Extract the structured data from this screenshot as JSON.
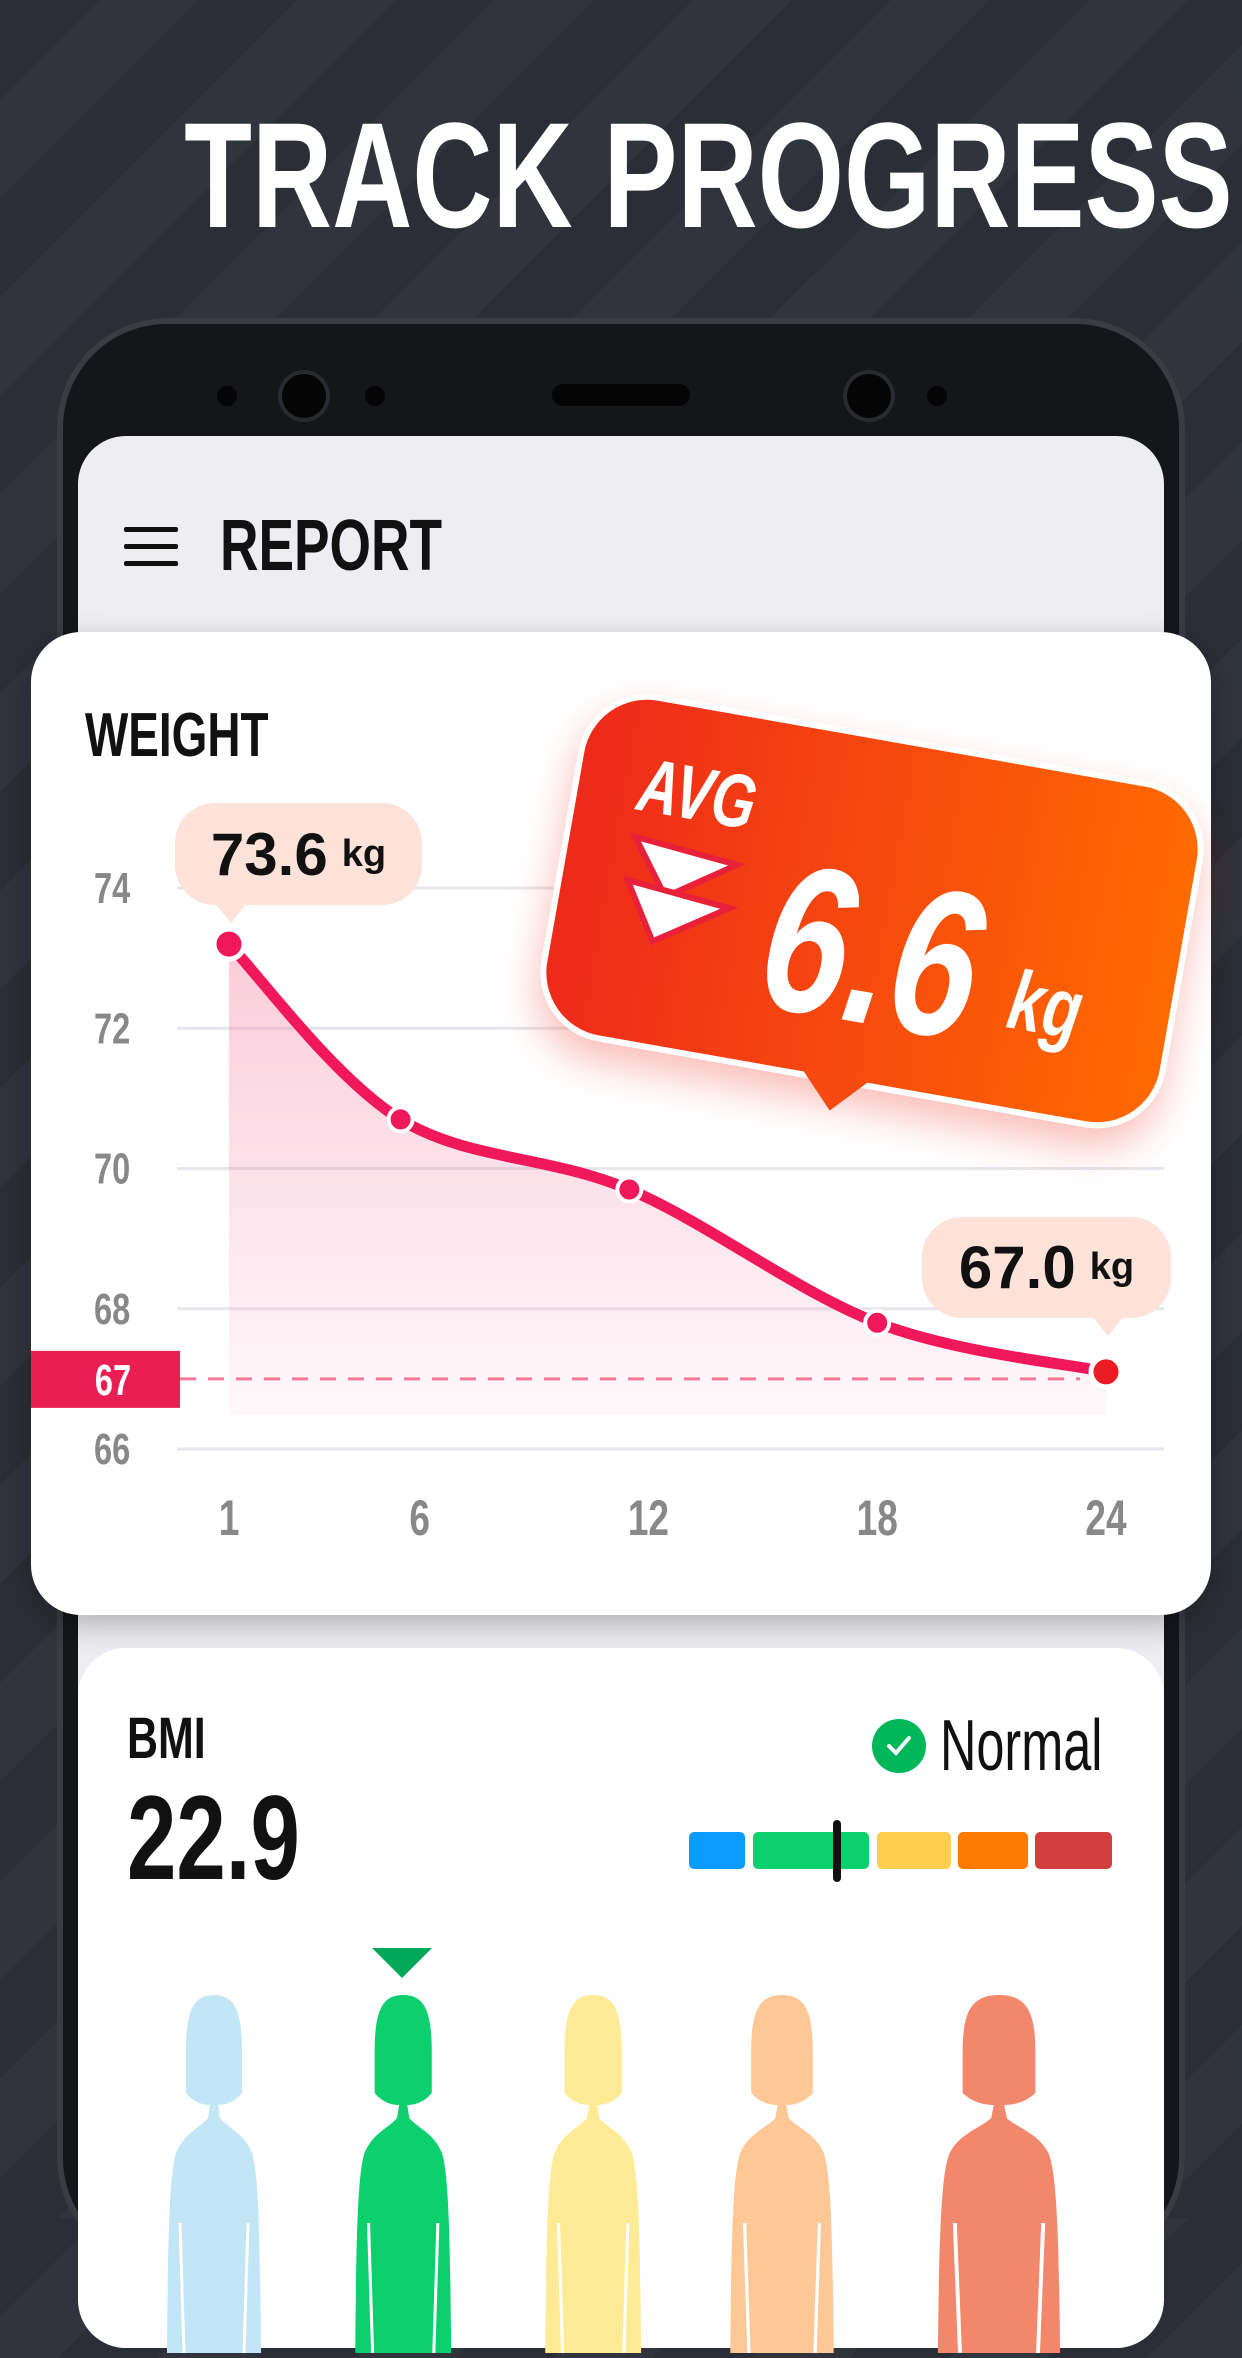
{
  "headline": "TRACK PROGRESS",
  "header": {
    "title": "REPORT",
    "menu_icon": "hamburger-icon"
  },
  "weight": {
    "title": "WEIGHT",
    "start_value": "73.6",
    "end_value": "67.0",
    "unit": "kg",
    "target_label": "67",
    "avg": {
      "label": "AVG",
      "value": "6.6",
      "unit": "kg",
      "icon": "double-down-arrow-icon"
    }
  },
  "chart_data": {
    "type": "line",
    "x": [
      1,
      5.5,
      11.5,
      18,
      24
    ],
    "y": [
      73.2,
      70.7,
      69.7,
      67.8,
      67.1
    ],
    "x_ticks": [
      "1",
      "6",
      "12",
      "18",
      "24"
    ],
    "x_tick_values": [
      1,
      6,
      12,
      18,
      24
    ],
    "y_ticks": [
      "74",
      "72",
      "70",
      "68",
      "66"
    ],
    "y_tick_values": [
      74,
      72,
      70,
      68,
      66
    ],
    "ylim": [
      66,
      74
    ],
    "xlim": [
      1,
      24
    ],
    "target": 67,
    "grid": true,
    "line_color": "#f0185a",
    "target_color": "#e91e52"
  },
  "bmi": {
    "label": "BMI",
    "value": "22.9",
    "status": "Normal",
    "status_color": "#00b65a",
    "scale_colors": [
      "#0a9bff",
      "#0ccf6e",
      "#ffcd50",
      "#ff7a00",
      "#d23f3f"
    ],
    "figure_colors": [
      "#c3e6f6",
      "#0ccf6e",
      "#ffea96",
      "#fdc796",
      "#f3876c"
    ],
    "selected_figure": 1
  }
}
